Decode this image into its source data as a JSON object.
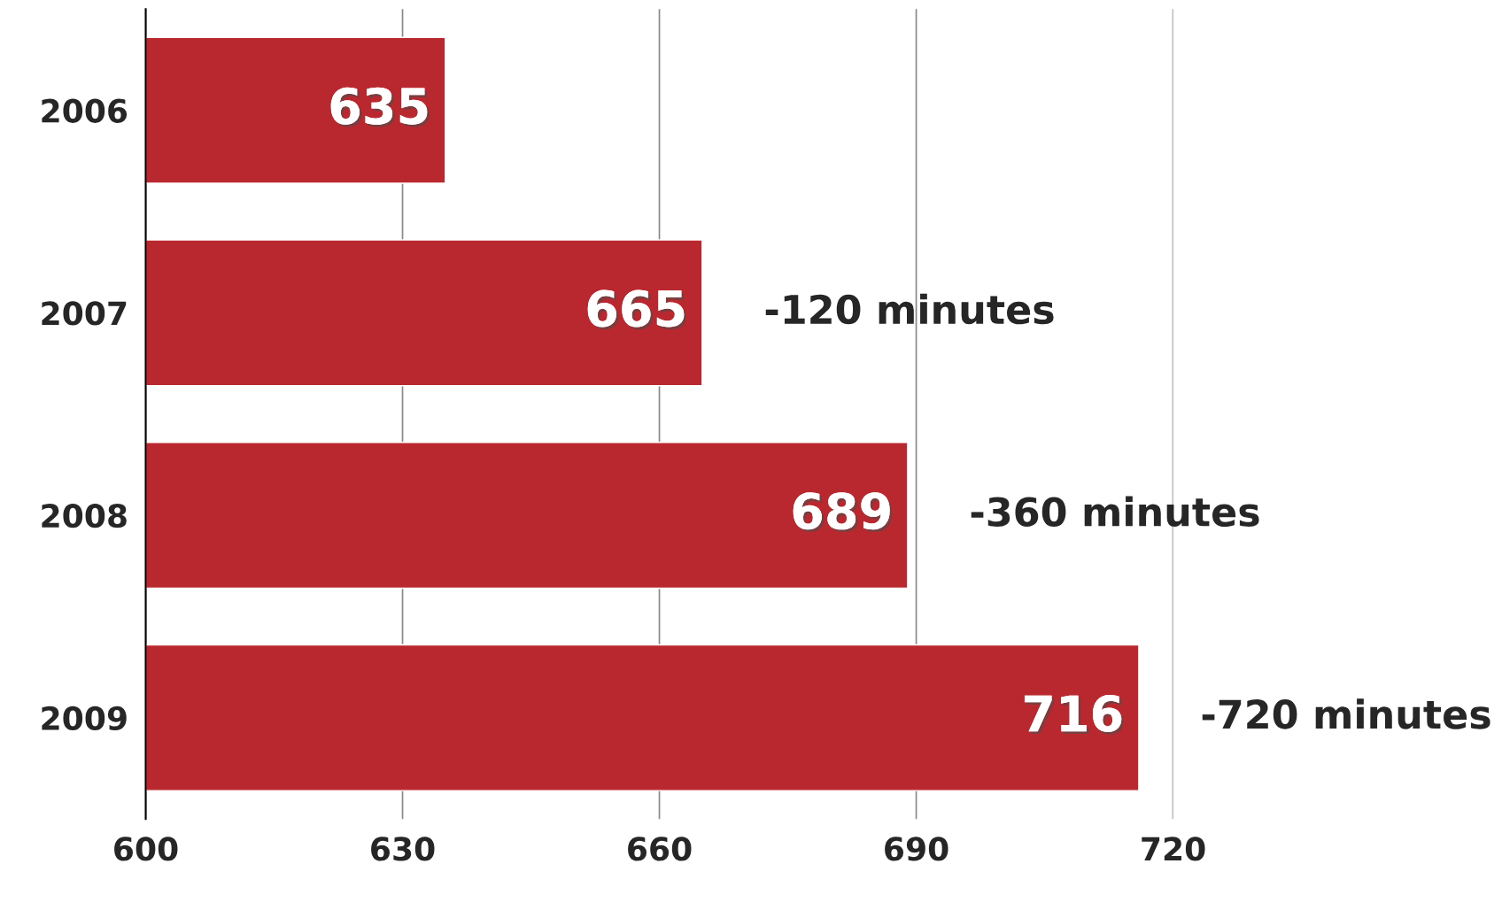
{
  "chart_data": {
    "type": "bar",
    "orientation": "horizontal",
    "categories": [
      "2006",
      "2007",
      "2008",
      "2009"
    ],
    "values": [
      635,
      665,
      689,
      716
    ],
    "color": "#ba282f",
    "data_labels": true,
    "xlim": [
      600,
      720
    ],
    "xticks": [
      600,
      630,
      660,
      690,
      720
    ],
    "grid": "x",
    "legend": false,
    "annotations": [
      "-120 minutes",
      "-360 minutes",
      "-720 minutes"
    ]
  }
}
